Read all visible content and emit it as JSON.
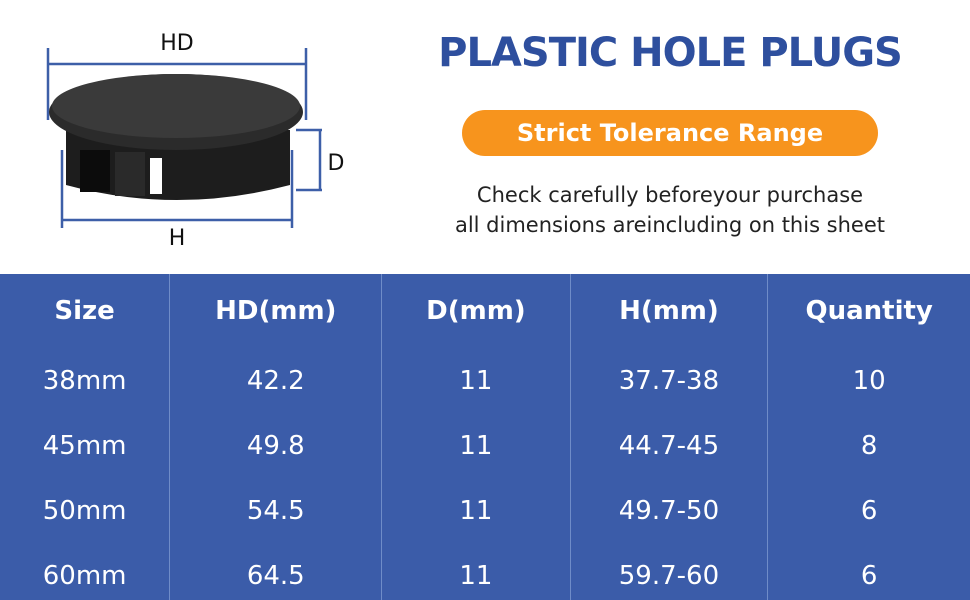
{
  "header": {
    "title": "PLASTIC HOLE PLUGS",
    "badge": "Strict Tolerance Range",
    "description": [
      "Check carefully beforeyour purchase",
      "all dimensions areincluding on this sheet"
    ]
  },
  "diagram": {
    "labels": {
      "hd": "HD",
      "d": "D",
      "h": "H"
    }
  },
  "table": {
    "columns": [
      "Size",
      "HD(mm)",
      "D(mm)",
      "H(mm)",
      "Quantity"
    ],
    "rows": [
      [
        "38mm",
        "42.2",
        "11",
        "37.7-38",
        "10"
      ],
      [
        "45mm",
        "49.8",
        "11",
        "44.7-45",
        "8"
      ],
      [
        "50mm",
        "54.5",
        "11",
        "49.7-50",
        "6"
      ],
      [
        "60mm",
        "64.5",
        "11",
        "59.7-60",
        "6"
      ]
    ]
  }
}
